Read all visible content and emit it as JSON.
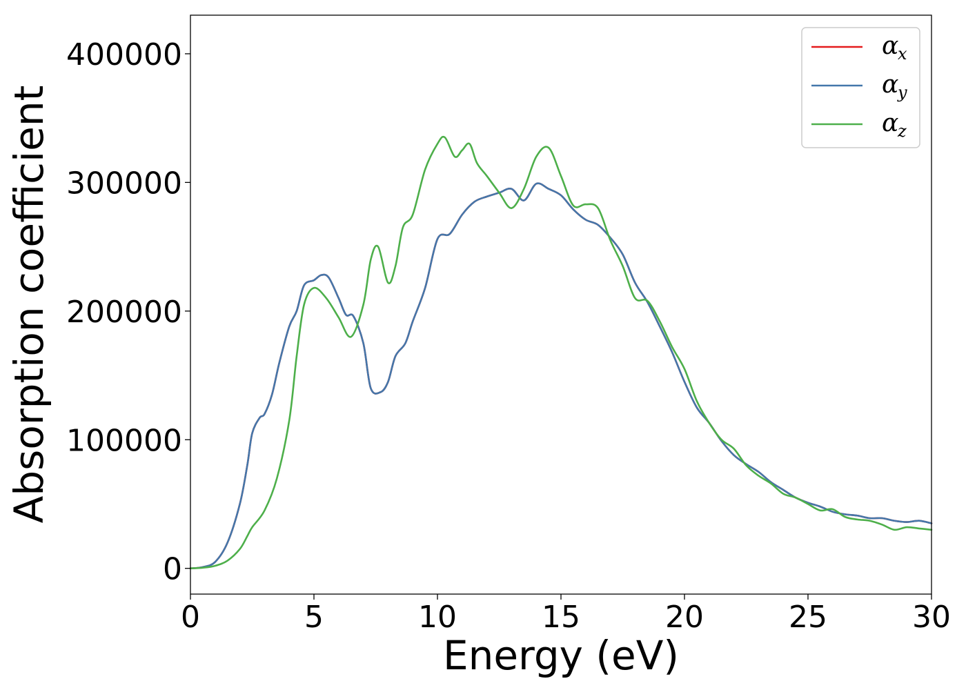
{
  "chart_data": {
    "type": "line",
    "xlabel": "Energy (eV)",
    "ylabel": "Absorption coefficient",
    "xlim": [
      0,
      30
    ],
    "ylim": [
      -20000,
      430000
    ],
    "xticks": [
      0,
      5,
      10,
      15,
      20,
      25,
      30
    ],
    "yticks": [
      0,
      100000,
      200000,
      300000,
      400000
    ],
    "xtick_labels": [
      "0",
      "5",
      "10",
      "15",
      "20",
      "25",
      "30"
    ],
    "ytick_labels": [
      "0",
      "100000",
      "200000",
      "300000",
      "400000"
    ],
    "grid": false,
    "legend_position": "top-right",
    "series": [
      {
        "name": "α_x",
        "label_symbol": "α",
        "label_sub": "x",
        "color": "#e41a1c",
        "x": [
          0,
          0.5,
          1,
          1.5,
          2,
          2.3,
          2.5,
          2.8,
          3,
          3.3,
          3.6,
          4,
          4.3,
          4.6,
          5,
          5.3,
          5.6,
          6,
          6.3,
          6.6,
          7,
          7.3,
          7.7,
          8,
          8.3,
          8.7,
          9,
          9.5,
          10,
          10.5,
          11,
          11.5,
          12,
          12.5,
          13,
          13.5,
          14,
          14.5,
          15,
          15.5,
          16,
          16.5,
          17,
          17.5,
          18,
          18.5,
          19,
          19.5,
          20,
          20.5,
          21,
          21.5,
          22,
          22.5,
          23,
          23.5,
          24,
          24.5,
          25,
          25.5,
          26,
          26.5,
          27,
          27.5,
          28,
          28.5,
          29,
          29.5,
          30
        ],
        "y": [
          0,
          1000,
          5000,
          20000,
          50000,
          80000,
          105000,
          117000,
          120000,
          135000,
          160000,
          188000,
          200000,
          220000,
          224000,
          228000,
          226000,
          210000,
          197000,
          196000,
          175000,
          140000,
          137000,
          145000,
          165000,
          175000,
          192000,
          218000,
          256000,
          260000,
          275000,
          285000,
          289000,
          292000,
          295000,
          286000,
          299000,
          295000,
          290000,
          279000,
          271000,
          267000,
          257000,
          244000,
          222000,
          207000,
          188000,
          168000,
          145000,
          125000,
          113000,
          99000,
          88000,
          81000,
          75000,
          67000,
          61000,
          55000,
          51000,
          48000,
          44000,
          42000,
          41000,
          39000,
          39000,
          37000,
          36000,
          37000,
          35000
        ]
      },
      {
        "name": "α_y",
        "label_symbol": "α",
        "label_sub": "y",
        "color": "#4477aa",
        "x": [
          0,
          0.5,
          1,
          1.5,
          2,
          2.3,
          2.5,
          2.8,
          3,
          3.3,
          3.6,
          4,
          4.3,
          4.6,
          5,
          5.3,
          5.6,
          6,
          6.3,
          6.6,
          7,
          7.3,
          7.7,
          8,
          8.3,
          8.7,
          9,
          9.5,
          10,
          10.5,
          11,
          11.5,
          12,
          12.5,
          13,
          13.5,
          14,
          14.5,
          15,
          15.5,
          16,
          16.5,
          17,
          17.5,
          18,
          18.5,
          19,
          19.5,
          20,
          20.5,
          21,
          21.5,
          22,
          22.5,
          23,
          23.5,
          24,
          24.5,
          25,
          25.5,
          26,
          26.5,
          27,
          27.5,
          28,
          28.5,
          29,
          29.5,
          30
        ],
        "y": [
          0,
          1000,
          5000,
          20000,
          50000,
          80000,
          105000,
          117000,
          120000,
          135000,
          160000,
          188000,
          200000,
          220000,
          224000,
          228000,
          226000,
          210000,
          197000,
          196000,
          175000,
          140000,
          137000,
          145000,
          165000,
          175000,
          192000,
          218000,
          256000,
          260000,
          275000,
          285000,
          289000,
          292000,
          295000,
          286000,
          299000,
          295000,
          290000,
          279000,
          271000,
          267000,
          257000,
          244000,
          222000,
          207000,
          188000,
          168000,
          145000,
          125000,
          113000,
          99000,
          88000,
          81000,
          75000,
          67000,
          61000,
          55000,
          51000,
          48000,
          44000,
          42000,
          41000,
          39000,
          39000,
          37000,
          36000,
          37000,
          35000
        ]
      },
      {
        "name": "α_z",
        "label_symbol": "α",
        "label_sub": "z",
        "color": "#4daf4a",
        "x": [
          0,
          0.5,
          1,
          1.5,
          2,
          2.3,
          2.5,
          3,
          3.5,
          4,
          4.3,
          4.6,
          5,
          5.5,
          6,
          6.5,
          7,
          7.3,
          7.6,
          8,
          8.3,
          8.6,
          9,
          9.5,
          10,
          10.3,
          10.7,
          11,
          11.3,
          11.6,
          12,
          12.5,
          13,
          13.5,
          14,
          14.5,
          15,
          15.5,
          16,
          16.5,
          17,
          17.5,
          18,
          18.5,
          19,
          19.5,
          20,
          20.5,
          21,
          21.5,
          22,
          22.5,
          23,
          23.5,
          24,
          24.5,
          25,
          25.5,
          26,
          26.5,
          27,
          27.5,
          28,
          28.5,
          29,
          29.5,
          30
        ],
        "y": [
          0,
          500,
          2000,
          6000,
          15000,
          25000,
          32000,
          45000,
          70000,
          115000,
          165000,
          205000,
          218000,
          210000,
          195000,
          180000,
          205000,
          240000,
          250000,
          222000,
          235000,
          265000,
          275000,
          310000,
          330000,
          335000,
          320000,
          325000,
          330000,
          315000,
          305000,
          292000,
          280000,
          295000,
          320000,
          327000,
          305000,
          282000,
          283000,
          280000,
          255000,
          235000,
          210000,
          208000,
          192000,
          172000,
          155000,
          130000,
          113000,
          100000,
          93000,
          80000,
          72000,
          66000,
          58000,
          55000,
          50000,
          45000,
          46000,
          40000,
          38000,
          37000,
          34000,
          30000,
          32000,
          31000,
          30000
        ]
      }
    ]
  }
}
